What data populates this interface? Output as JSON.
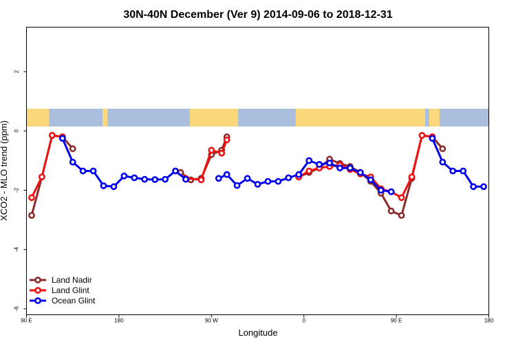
{
  "chart_data": {
    "type": "line",
    "title": "30N-40N December (Ver 9)   2014-09-06 to 2018-12-31",
    "xlabel": "Longitude",
    "ylabel": "XCO2 - MLO trend (ppm)",
    "xlim": [
      90,
      540
    ],
    "ylim": [
      -6.2,
      3.5
    ],
    "x_ticks": [
      {
        "value": 90,
        "label": "90 E"
      },
      {
        "value": 180,
        "label": "180"
      },
      {
        "value": 270,
        "label": "90 W"
      },
      {
        "value": 360,
        "label": "0"
      },
      {
        "value": 450,
        "label": "90 E"
      },
      {
        "value": 540,
        "label": "180"
      }
    ],
    "y_ticks": [
      {
        "value": 2,
        "label": "2"
      },
      {
        "value": 0,
        "label": "0"
      },
      {
        "value": -2,
        "label": "-2"
      },
      {
        "value": -4,
        "label": "-4"
      },
      {
        "value": -6,
        "label": "-6"
      }
    ],
    "grid": false,
    "legend_position": "bottom-left",
    "map_band": {
      "y_from": 0.15,
      "y_to": 0.75,
      "ocean_color": "#a9bfdd",
      "land_color": "#fbd87b"
    },
    "series": [
      {
        "name": "Land Nadir",
        "color": "#8b2a2a",
        "segments": [
          [
            [
              95,
              -2.85
            ],
            [
              105,
              -1.55
            ],
            [
              115,
              -0.15
            ],
            [
              125,
              -0.2
            ],
            [
              135,
              -0.6
            ]
          ],
          [
            [
              240,
              -1.4
            ],
            [
              250,
              -1.65
            ],
            [
              260,
              -1.6
            ],
            [
              270,
              -0.8
            ],
            [
              280,
              -0.65
            ],
            [
              285,
              -0.2
            ]
          ],
          [
            [
              355,
              -1.55
            ],
            [
              365,
              -1.4
            ],
            [
              375,
              -1.25
            ],
            [
              385,
              -0.95
            ],
            [
              395,
              -1.1
            ],
            [
              405,
              -1.2
            ],
            [
              415,
              -1.4
            ],
            [
              425,
              -1.7
            ],
            [
              435,
              -2.1
            ],
            [
              445,
              -2.7
            ],
            [
              455,
              -2.85
            ],
            [
              465,
              -1.6
            ],
            [
              475,
              -0.15
            ],
            [
              485,
              -0.2
            ],
            [
              495,
              -0.6
            ]
          ]
        ]
      },
      {
        "name": "Land Glint",
        "color": "#ee1111",
        "segments": [
          [
            [
              95,
              -2.25
            ],
            [
              105,
              -1.55
            ],
            [
              115,
              -0.15
            ],
            [
              125,
              -0.2
            ]
          ],
          [
            [
              245,
              -1.6
            ],
            [
              260,
              -1.65
            ],
            [
              270,
              -0.65
            ],
            [
              280,
              -0.75
            ],
            [
              285,
              -0.3
            ]
          ],
          [
            [
              355,
              -1.55
            ],
            [
              365,
              -1.35
            ],
            [
              375,
              -1.25
            ],
            [
              385,
              -1.2
            ],
            [
              395,
              -1.15
            ],
            [
              405,
              -1.3
            ],
            [
              415,
              -1.45
            ],
            [
              425,
              -1.55
            ],
            [
              435,
              -1.95
            ],
            [
              445,
              -2.05
            ],
            [
              455,
              -2.25
            ],
            [
              465,
              -1.55
            ],
            [
              475,
              -0.15
            ],
            [
              485,
              -0.2
            ]
          ]
        ]
      },
      {
        "name": "Ocean Glint",
        "color": "#0000ee",
        "segments": [
          [
            [
              125,
              -0.25
            ],
            [
              135,
              -1.05
            ],
            [
              145,
              -1.35
            ],
            [
              155,
              -1.35
            ],
            [
              165,
              -1.85
            ],
            [
              175,
              -1.88
            ],
            [
              185,
              -1.52
            ],
            [
              195,
              -1.58
            ],
            [
              205,
              -1.63
            ],
            [
              215,
              -1.64
            ],
            [
              225,
              -1.63
            ],
            [
              235,
              -1.35
            ],
            [
              245,
              -1.63
            ]
          ],
          [
            [
              277,
              -1.6
            ],
            [
              285,
              -1.47
            ],
            [
              295,
              -1.84
            ],
            [
              305,
              -1.6
            ],
            [
              315,
              -1.8
            ],
            [
              325,
              -1.7
            ],
            [
              335,
              -1.7
            ],
            [
              345,
              -1.58
            ],
            [
              355,
              -1.47
            ],
            [
              365,
              -1.0
            ],
            [
              375,
              -1.13
            ],
            [
              385,
              -1.08
            ],
            [
              395,
              -1.25
            ],
            [
              405,
              -1.25
            ],
            [
              415,
              -1.4
            ],
            [
              425,
              -1.65
            ],
            [
              435,
              -2.0
            ],
            [
              445,
              -2.05
            ]
          ],
          [
            [
              485,
              -0.25
            ],
            [
              495,
              -1.05
            ],
            [
              505,
              -1.35
            ],
            [
              515,
              -1.35
            ],
            [
              525,
              -1.88
            ],
            [
              535,
              -1.88
            ]
          ]
        ]
      }
    ]
  }
}
